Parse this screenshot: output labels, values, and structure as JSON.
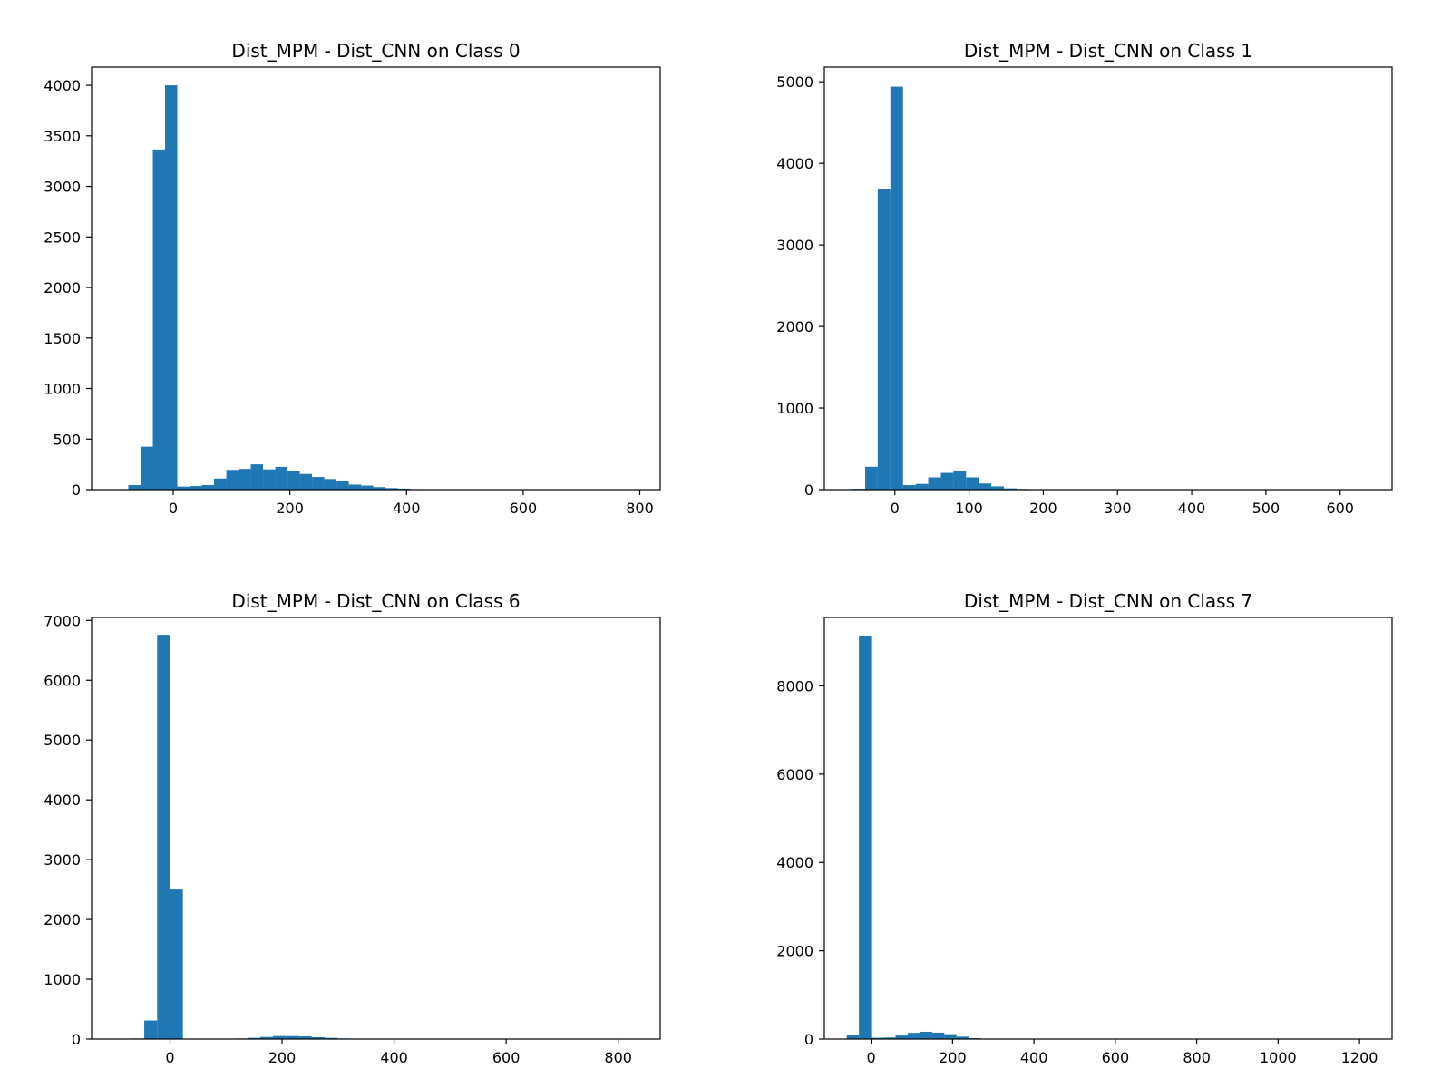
{
  "chart_data": [
    {
      "type": "bar",
      "title": "Dist_MPM - Dist_CNN on Class 0",
      "xlabel": "",
      "ylabel": "",
      "xlim": [
        -140,
        835
      ],
      "ylim": [
        0,
        4180
      ],
      "xticks": [
        0,
        200,
        400,
        600,
        800
      ],
      "yticks": [
        0,
        500,
        1000,
        1500,
        2000,
        2500,
        3000,
        3500,
        4000
      ],
      "bar_color": "#1f77b4",
      "bin_edges": [
        -98,
        -77,
        -56,
        -35,
        -14,
        7,
        28,
        49,
        70,
        91,
        112,
        133,
        154,
        175,
        196,
        217,
        238,
        259,
        280,
        301,
        322,
        343,
        364,
        385,
        406,
        427,
        448
      ],
      "counts": [
        5,
        45,
        425,
        3365,
        4000,
        30,
        35,
        45,
        110,
        195,
        205,
        250,
        200,
        225,
        180,
        155,
        125,
        105,
        90,
        50,
        40,
        25,
        15,
        10,
        5,
        3
      ],
      "grid": false
    },
    {
      "type": "bar",
      "title": "Dist_MPM - Dist_CNN on Class 1",
      "xlabel": "",
      "ylabel": "",
      "xlim": [
        -95,
        670
      ],
      "ylim": [
        0,
        5180
      ],
      "xticks": [
        0,
        100,
        200,
        300,
        400,
        500,
        600
      ],
      "yticks": [
        0,
        1000,
        2000,
        3000,
        4000,
        5000
      ],
      "bar_color": "#1f77b4",
      "bin_edges": [
        -57,
        -40,
        -23,
        -6,
        11,
        28,
        45,
        62,
        79,
        96,
        113,
        130,
        147,
        164,
        181,
        198
      ],
      "counts": [
        10,
        280,
        3690,
        4940,
        55,
        70,
        150,
        205,
        225,
        150,
        75,
        40,
        15,
        8,
        4
      ],
      "grid": false
    },
    {
      "type": "bar",
      "title": "Dist_MPM - Dist_CNN on Class 6",
      "xlabel": "",
      "ylabel": "",
      "xlim": [
        -140,
        875
      ],
      "ylim": [
        0,
        7050
      ],
      "xticks": [
        0,
        200,
        400,
        600,
        800
      ],
      "yticks": [
        0,
        1000,
        2000,
        3000,
        4000,
        5000,
        6000,
        7000
      ],
      "bar_color": "#1f77b4",
      "bin_edges": [
        -69,
        -46,
        -23,
        0,
        23,
        46,
        69,
        92,
        115,
        138,
        161,
        184,
        207,
        230,
        253,
        276,
        299,
        322,
        345
      ],
      "counts": [
        10,
        310,
        6760,
        2500,
        5,
        5,
        5,
        5,
        10,
        20,
        35,
        50,
        50,
        45,
        30,
        20,
        10,
        5
      ],
      "grid": false
    },
    {
      "type": "bar",
      "title": "Dist_MPM - Dist_CNN on Class 7",
      "xlabel": "",
      "ylabel": "",
      "xlim": [
        -115,
        1280
      ],
      "ylim": [
        0,
        9550
      ],
      "xticks": [
        0,
        200,
        400,
        600,
        800,
        1000,
        1200
      ],
      "yticks": [
        0,
        2000,
        4000,
        6000,
        8000
      ],
      "bar_color": "#1f77b4",
      "bin_edges": [
        -60,
        -30,
        0,
        30,
        60,
        90,
        120,
        150,
        180,
        210,
        240,
        270,
        300
      ],
      "counts": [
        100,
        9130,
        30,
        35,
        80,
        140,
        165,
        145,
        110,
        55,
        20,
        8
      ],
      "grid": false
    }
  ]
}
